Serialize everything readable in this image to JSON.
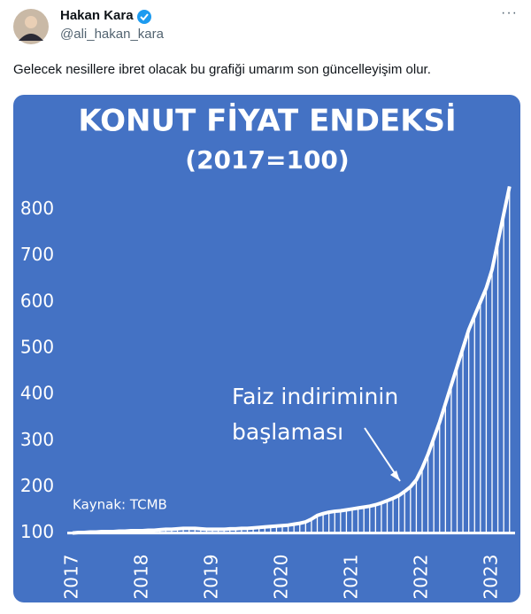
{
  "tweet": {
    "name": "Hakan Kara",
    "handle": "@ali_hakan_kara",
    "text": "Gelecek nesillere ibret olacak bu grafiği umarım son güncelleyişim olur."
  },
  "chart_data": {
    "type": "line",
    "title": "KONUT FİYAT ENDEKSİ",
    "subtitle": "(2017=100)",
    "annotation": [
      "Faiz indiriminin",
      "başlaması"
    ],
    "source": "Kaynak: TCMB",
    "color": "#ffffff",
    "background": "#4472c4",
    "categories": [
      "2017",
      null,
      null,
      null,
      null,
      null,
      null,
      null,
      null,
      null,
      null,
      null,
      "2018",
      null,
      null,
      null,
      null,
      null,
      null,
      null,
      null,
      null,
      null,
      null,
      "2019",
      null,
      null,
      null,
      null,
      null,
      null,
      null,
      null,
      null,
      null,
      null,
      "2020",
      null,
      null,
      null,
      null,
      null,
      null,
      null,
      null,
      null,
      null,
      null,
      "2021",
      null,
      null,
      null,
      null,
      null,
      null,
      null,
      null,
      null,
      null,
      null,
      "2022",
      null,
      null,
      null,
      null,
      null,
      null,
      null,
      null,
      null,
      null,
      null,
      "2023",
      null,
      null,
      null
    ],
    "values": [
      100,
      101,
      101,
      102,
      102,
      103,
      103,
      103,
      104,
      104,
      105,
      105,
      105,
      106,
      106,
      107,
      108,
      108,
      109,
      110,
      110,
      110,
      109,
      108,
      108,
      108,
      108,
      109,
      109,
      110,
      110,
      111,
      112,
      113,
      114,
      115,
      116,
      117,
      119,
      121,
      124,
      130,
      138,
      142,
      145,
      147,
      148,
      150,
      152,
      154,
      156,
      158,
      161,
      165,
      170,
      175,
      181,
      190,
      200,
      215,
      240,
      270,
      305,
      340,
      380,
      420,
      460,
      500,
      540,
      570,
      600,
      630,
      670,
      730,
      790,
      850
    ],
    "ylim": [
      80,
      870
    ],
    "yticks": [
      100,
      200,
      300,
      400,
      500,
      600,
      700,
      800
    ]
  }
}
